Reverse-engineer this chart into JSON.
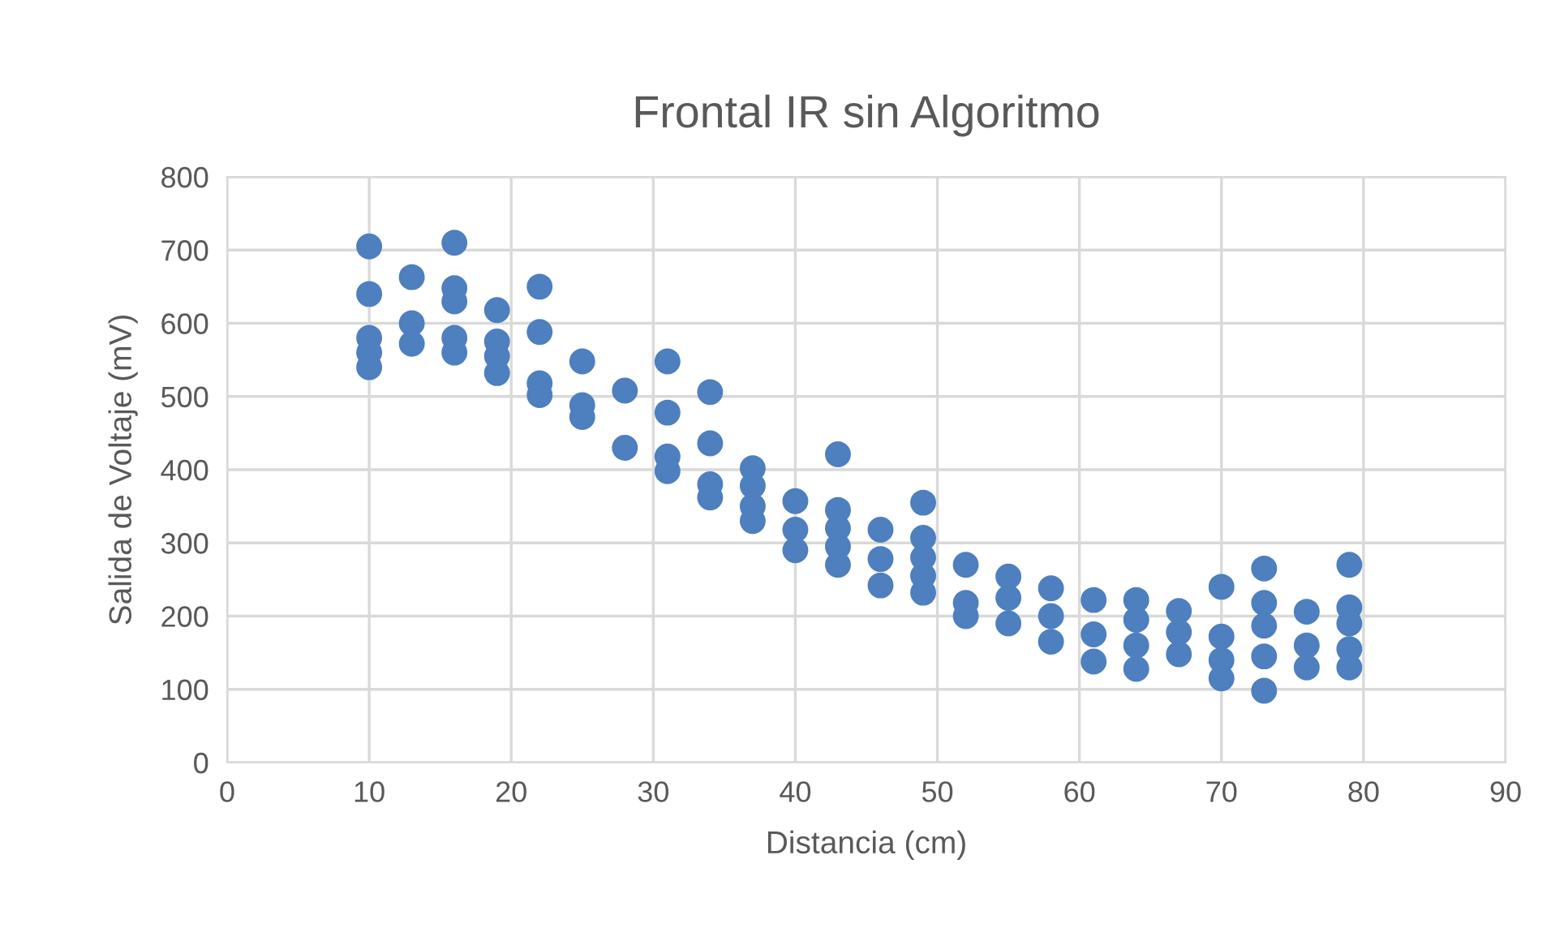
{
  "chart_data": {
    "type": "scatter",
    "title": "Frontal IR sin Algoritmo",
    "xlabel": "Distancia (cm)",
    "ylabel": "Salida de Voltaje (mV)",
    "xlim": [
      0,
      90
    ],
    "xticks": [
      0,
      10,
      20,
      30,
      40,
      50,
      60,
      70,
      80,
      90
    ],
    "ylim": [
      0,
      800
    ],
    "yticks": [
      0,
      100,
      200,
      300,
      400,
      500,
      600,
      700,
      800
    ],
    "grid": true,
    "marker": "circle",
    "series": [
      {
        "color": "#4e7fbf",
        "x": [
          10,
          10,
          10,
          10,
          10,
          13,
          13,
          13,
          16,
          16,
          16,
          16,
          16,
          19,
          19,
          19,
          19,
          22,
          22,
          22,
          22,
          25,
          25,
          25,
          28,
          28,
          31,
          31,
          31,
          31,
          34,
          34,
          34,
          34,
          37,
          37,
          37,
          37,
          40,
          40,
          40,
          43,
          43,
          43,
          43,
          43,
          46,
          46,
          46,
          49,
          49,
          49,
          49,
          49,
          52,
          52,
          52,
          55,
          55,
          55,
          58,
          58,
          58,
          61,
          61,
          61,
          64,
          64,
          64,
          64,
          67,
          67,
          67,
          70,
          70,
          70,
          70,
          73,
          73,
          73,
          73,
          73,
          76,
          76,
          76,
          79,
          79,
          79,
          79,
          79
        ],
        "values": [
          705,
          640,
          580,
          560,
          540,
          663,
          600,
          572,
          710,
          648,
          630,
          580,
          560,
          618,
          575,
          555,
          532,
          650,
          588,
          518,
          502,
          548,
          488,
          472,
          508,
          430,
          548,
          478,
          418,
          398,
          506,
          436,
          380,
          362,
          402,
          378,
          350,
          330,
          357,
          318,
          290,
          421,
          345,
          320,
          295,
          270,
          318,
          278,
          242,
          355,
          307,
          280,
          255,
          232,
          270,
          218,
          200,
          254,
          225,
          190,
          238,
          200,
          165,
          222,
          175,
          138,
          222,
          195,
          160,
          128,
          207,
          178,
          148,
          240,
          172,
          140,
          115,
          265,
          218,
          187,
          145,
          98,
          206,
          160,
          130,
          270,
          212,
          190,
          155,
          130
        ]
      }
    ]
  }
}
